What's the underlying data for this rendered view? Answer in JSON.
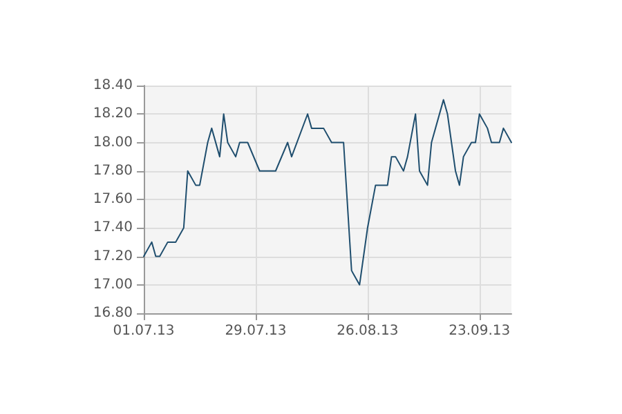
{
  "chart_data": {
    "type": "line",
    "x": [
      "2013-07-01",
      "2013-07-03",
      "2013-07-04",
      "2013-07-05",
      "2013-07-07",
      "2013-07-09",
      "2013-07-11",
      "2013-07-12",
      "2013-07-14",
      "2013-07-15",
      "2013-07-17",
      "2013-07-18",
      "2013-07-20",
      "2013-07-21",
      "2013-07-22",
      "2013-07-24",
      "2013-07-25",
      "2013-07-27",
      "2013-07-30",
      "2013-08-03",
      "2013-08-06",
      "2013-08-07",
      "2013-08-11",
      "2013-08-12",
      "2013-08-15",
      "2013-08-17",
      "2013-08-20",
      "2013-08-22",
      "2013-08-24",
      "2013-08-26",
      "2013-08-28",
      "2013-08-31",
      "2013-09-01",
      "2013-09-02",
      "2013-09-04",
      "2013-09-05",
      "2013-09-07",
      "2013-09-08",
      "2013-09-10",
      "2013-09-11",
      "2013-09-12",
      "2013-09-14",
      "2013-09-15",
      "2013-09-17",
      "2013-09-18",
      "2013-09-19",
      "2013-09-21",
      "2013-09-22",
      "2013-09-23",
      "2013-09-25",
      "2013-09-26",
      "2013-09-28",
      "2013-09-29",
      "2013-10-01"
    ],
    "series": [
      {
        "color": "#1f4e6e",
        "values": [
          17.2,
          17.3,
          17.2,
          17.2,
          17.3,
          17.3,
          17.4,
          17.8,
          17.7,
          17.7,
          18.0,
          18.1,
          17.9,
          18.2,
          18.0,
          17.9,
          18.0,
          18.0,
          17.8,
          17.8,
          18.0,
          17.9,
          18.2,
          18.1,
          18.1,
          18.0,
          18.0,
          17.1,
          17.0,
          17.4,
          17.7,
          17.7,
          17.9,
          17.9,
          17.8,
          17.9,
          18.2,
          17.8,
          17.7,
          18.0,
          18.1,
          18.3,
          18.2,
          17.8,
          17.7,
          17.9,
          18.0,
          18.0,
          18.2,
          18.1,
          18.0,
          18.0,
          18.1,
          18.0
        ]
      }
    ],
    "xlim": [
      "2013-07-01",
      "2013-10-01"
    ],
    "xticks": [
      {
        "value": "2013-07-01",
        "label": "01.07.13"
      },
      {
        "value": "2013-07-29",
        "label": "29.07.13"
      },
      {
        "value": "2013-08-26",
        "label": "26.08.13"
      },
      {
        "value": "2013-09-23",
        "label": "23.09.13"
      }
    ],
    "ylim": [
      16.8,
      18.4
    ],
    "yticks": [
      {
        "value": 16.8,
        "label": "16.80"
      },
      {
        "value": 17.0,
        "label": "17.00"
      },
      {
        "value": 17.2,
        "label": "17.20"
      },
      {
        "value": 17.4,
        "label": "17.40"
      },
      {
        "value": 17.6,
        "label": "17.60"
      },
      {
        "value": 17.8,
        "label": "17.80"
      },
      {
        "value": 18.0,
        "label": "18.00"
      },
      {
        "value": 18.2,
        "label": "18.20"
      },
      {
        "value": 18.4,
        "label": "18.40"
      }
    ],
    "grid": true,
    "marker": "none",
    "line_style": "solid"
  }
}
